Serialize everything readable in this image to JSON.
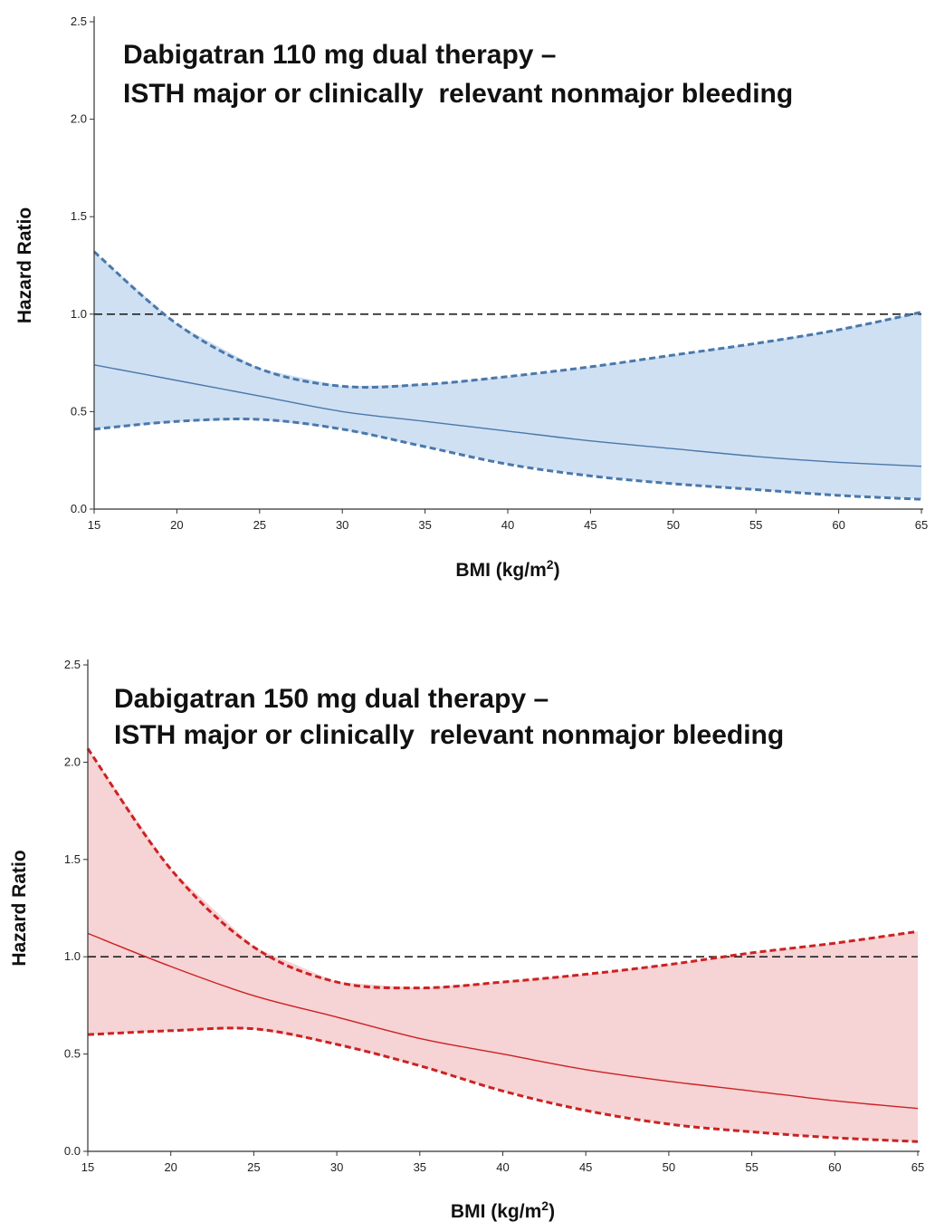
{
  "chart_data": [
    {
      "type": "line",
      "title_lines": [
        "Dabigatran 110 mg dual therapy –",
        "ISTH major or clinically  relevant nonmajor bleeding"
      ],
      "xlabel": "BMI (kg/m",
      "xlabel_sup": "2",
      "xlabel_suffix": ")",
      "ylabel": "Hazard Ratio",
      "xlim": [
        15,
        65
      ],
      "ylim": [
        0,
        2.5
      ],
      "xticks": [
        15,
        20,
        25,
        30,
        35,
        40,
        45,
        50,
        55,
        60,
        65
      ],
      "xtick_labels": [
        "15",
        "20",
        "25",
        "30",
        "35",
        "40",
        "45",
        "50",
        "55",
        "60",
        "65"
      ],
      "yticks": [
        0,
        0.5,
        1,
        1.5,
        2,
        2.5
      ],
      "ytick_labels": [
        "0.0",
        "0.5",
        "1.0",
        "1.5",
        "2.0",
        "2.5"
      ],
      "reference_line": 1.0,
      "colors": {
        "line": "#4a78aa",
        "fill": "#cfe0f3",
        "reference": "#222222"
      },
      "x": [
        15,
        20,
        25,
        30,
        35,
        40,
        45,
        50,
        55,
        60,
        65
      ],
      "estimate": [
        0.74,
        0.66,
        0.58,
        0.5,
        0.45,
        0.4,
        0.35,
        0.31,
        0.27,
        0.24,
        0.22
      ],
      "upper": [
        1.32,
        0.95,
        0.72,
        0.63,
        0.64,
        0.68,
        0.73,
        0.79,
        0.85,
        0.92,
        1.01
      ],
      "lower": [
        0.41,
        0.45,
        0.46,
        0.41,
        0.32,
        0.23,
        0.17,
        0.13,
        0.1,
        0.07,
        0.05
      ]
    },
    {
      "type": "line",
      "title_lines": [
        "Dabigatran 150 mg dual therapy –",
        "ISTH major or clinically  relevant nonmajor bleeding"
      ],
      "xlabel": "BMI (kg/m",
      "xlabel_sup": "2",
      "xlabel_suffix": ")",
      "ylabel": "Hazard Ratio",
      "xlim": [
        15,
        65
      ],
      "ylim": [
        0,
        2.5
      ],
      "xticks": [
        15,
        20,
        25,
        30,
        35,
        40,
        45,
        50,
        55,
        60,
        65
      ],
      "xtick_labels": [
        "15",
        "20",
        "25",
        "30",
        "35",
        "40",
        "45",
        "50",
        "55",
        "60",
        "65"
      ],
      "yticks": [
        0,
        0.5,
        1,
        1.5,
        2,
        2.5
      ],
      "ytick_labels": [
        "0.0",
        "0.5",
        "1.0",
        "1.5",
        "2.0",
        "2.5"
      ],
      "reference_line": 1.0,
      "colors": {
        "line": "#cc2222",
        "fill": "#f6d3d5",
        "reference": "#222222"
      },
      "x": [
        15,
        20,
        25,
        30,
        35,
        40,
        45,
        50,
        55,
        60,
        65
      ],
      "estimate": [
        1.12,
        0.95,
        0.8,
        0.69,
        0.58,
        0.5,
        0.42,
        0.36,
        0.31,
        0.26,
        0.22
      ],
      "upper": [
        2.07,
        1.45,
        1.05,
        0.87,
        0.84,
        0.87,
        0.91,
        0.96,
        1.02,
        1.07,
        1.13
      ],
      "lower": [
        0.6,
        0.62,
        0.63,
        0.55,
        0.44,
        0.31,
        0.21,
        0.14,
        0.1,
        0.07,
        0.05
      ]
    }
  ]
}
